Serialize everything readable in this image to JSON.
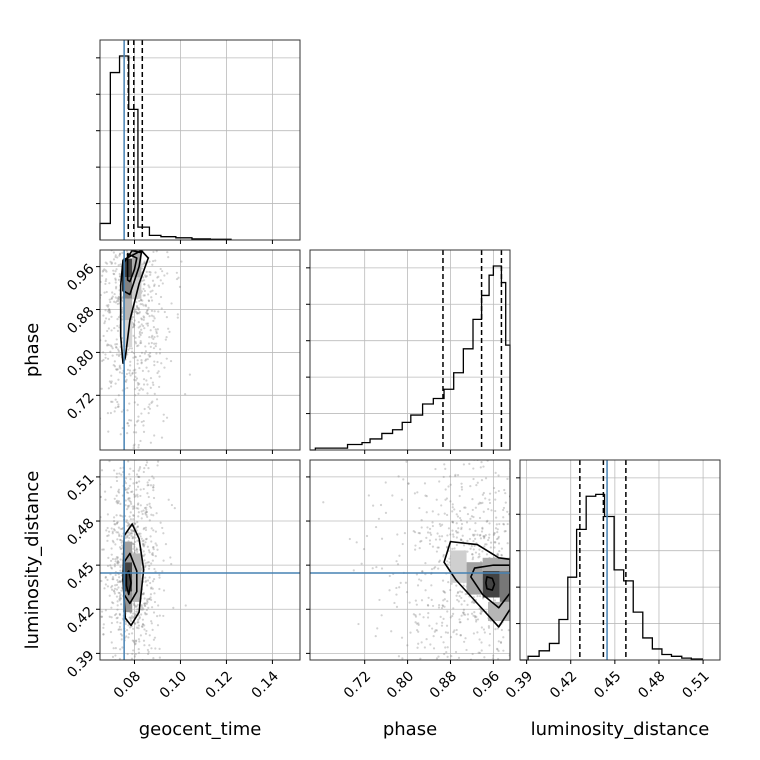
{
  "chart_data": {
    "type": "corner",
    "parameters": [
      "geocent_time",
      "phase",
      "luminosity_distance"
    ],
    "truths": {
      "geocent_time": 0.0755,
      "luminosity_distance": 0.4447
    },
    "colors": {
      "truth": "#4682b4",
      "contour": "#000000",
      "grid": "#bbbbbb",
      "scatter": "#7f7f7f"
    },
    "grid": true,
    "axes": {
      "geocent_time": {
        "range": [
          0.065,
          0.152
        ],
        "ticks": [
          0.08,
          0.1,
          0.12,
          0.14
        ],
        "tick_labels": [
          "0.08",
          "0.10",
          "0.12",
          "0.14"
        ]
      },
      "phase": {
        "range": [
          0.618,
          0.991
        ],
        "ticks": [
          0.72,
          0.8,
          0.88,
          0.96
        ],
        "tick_labels": [
          "0.72",
          "0.80",
          "0.88",
          "0.96"
        ]
      },
      "luminosity_distance": {
        "range": [
          0.3855,
          0.5215
        ],
        "ticks": [
          0.39,
          0.42,
          0.45,
          0.48,
          0.51
        ],
        "tick_labels": [
          "0.39",
          "0.42",
          "0.45",
          "0.48",
          "0.51"
        ]
      }
    },
    "histograms": [
      {
        "parameter": "geocent_time",
        "bin_edges": [
          0.065,
          0.0695,
          0.0735,
          0.0775,
          0.0815,
          0.0865,
          0.0915,
          0.098,
          0.105,
          0.113,
          0.122
        ],
        "counts": [
          0.09,
          0.91,
          1.0,
          0.71,
          0.07,
          0.025,
          0.018,
          0.012,
          0.006,
          0.004
        ],
        "quantiles": [
          0.0773,
          0.0797,
          0.0834
        ]
      },
      {
        "parameter": "phase",
        "bin_edges": [
          0.618,
          0.628,
          0.688,
          0.715,
          0.73,
          0.752,
          0.772,
          0.79,
          0.806,
          0.828,
          0.848,
          0.868,
          0.886,
          0.904,
          0.922,
          0.938,
          0.952,
          0.96,
          0.975,
          0.983,
          0.991
        ],
        "counts": [
          0,
          0.01,
          0.03,
          0.04,
          0.06,
          0.09,
          0.11,
          0.15,
          0.19,
          0.25,
          0.28,
          0.33,
          0.42,
          0.55,
          0.71,
          0.84,
          0.95,
          1.0,
          0.91,
          0.57
        ],
        "quantiles": [
          0.866,
          0.938,
          0.975
        ]
      },
      {
        "parameter": "luminosity_distance",
        "bin_edges": [
          0.3855,
          0.391,
          0.3985,
          0.4055,
          0.412,
          0.418,
          0.424,
          0.4305,
          0.437,
          0.443,
          0.4495,
          0.456,
          0.4625,
          0.469,
          0.4755,
          0.482,
          0.4885,
          0.4955,
          0.502,
          0.5095
        ],
        "counts": [
          0,
          0.02,
          0.05,
          0.09,
          0.22,
          0.45,
          0.71,
          0.89,
          0.9,
          0.78,
          0.49,
          0.43,
          0.26,
          0.12,
          0.06,
          0.03,
          0.02,
          0.01,
          0.005
        ],
        "quantiles": [
          0.4262,
          0.4422,
          0.4575
        ]
      }
    ],
    "panels_2d": [
      {
        "x": "geocent_time",
        "y": "phase",
        "contours": [
          [
            [
              0.077,
              0.984
            ],
            [
              0.081,
              0.976
            ],
            [
              0.08,
              0.955
            ],
            [
              0.078,
              0.932
            ],
            [
              0.077,
              0.935
            ],
            [
              0.077,
              0.972
            ],
            [
              0.077,
              0.984
            ]
          ],
          [
            [
              0.079,
              0.99
            ],
            [
              0.083,
              0.986
            ],
            [
              0.082,
              0.96
            ],
            [
              0.078,
              0.908
            ],
            [
              0.075,
              0.915
            ],
            [
              0.075,
              0.965
            ],
            [
              0.079,
              0.99
            ]
          ],
          [
            [
              0.083,
              0.99
            ],
            [
              0.086,
              0.976
            ],
            [
              0.082,
              0.928
            ],
            [
              0.078,
              0.86
            ],
            [
              0.076,
              0.79
            ],
            [
              0.075,
              0.78
            ],
            [
              0.074,
              0.83
            ],
            [
              0.074,
              0.925
            ],
            [
              0.075,
              0.972
            ],
            [
              0.083,
              0.99
            ]
          ]
        ],
        "density_cells": [
          {
            "x": [
              0.075,
              0.079
            ],
            "y": [
              0.94,
              0.975
            ],
            "level": 0.85
          },
          {
            "x": [
              0.075,
              0.079
            ],
            "y": [
              0.9,
              0.94
            ],
            "level": 0.55
          },
          {
            "x": [
              0.075,
              0.079
            ],
            "y": [
              0.86,
              0.9
            ],
            "level": 0.3
          },
          {
            "x": [
              0.075,
              0.079
            ],
            "y": [
              0.81,
              0.86
            ],
            "level": 0.15
          },
          {
            "x": [
              0.079,
              0.083
            ],
            "y": [
              0.94,
              0.99
            ],
            "level": 0.35
          },
          {
            "x": [
              0.079,
              0.083
            ],
            "y": [
              0.9,
              0.94
            ],
            "level": 0.2
          }
        ]
      },
      {
        "x": "geocent_time",
        "y": "luminosity_distance",
        "contours": [
          [
            [
              0.0775,
              0.446
            ],
            [
              0.0785,
              0.438
            ],
            [
              0.0775,
              0.43
            ],
            [
              0.0765,
              0.436
            ],
            [
              0.0765,
              0.444
            ],
            [
              0.0775,
              0.446
            ]
          ],
          [
            [
              0.078,
              0.458
            ],
            [
              0.081,
              0.446
            ],
            [
              0.081,
              0.432
            ],
            [
              0.078,
              0.424
            ],
            [
              0.0755,
              0.43
            ],
            [
              0.0755,
              0.452
            ],
            [
              0.078,
              0.458
            ]
          ],
          [
            [
              0.079,
              0.478
            ],
            [
              0.082,
              0.468
            ],
            [
              0.084,
              0.447
            ],
            [
              0.082,
              0.418
            ],
            [
              0.0785,
              0.409
            ],
            [
              0.076,
              0.414
            ],
            [
              0.075,
              0.44
            ],
            [
              0.0755,
              0.47
            ],
            [
              0.079,
              0.478
            ]
          ]
        ],
        "density_cells": [
          {
            "x": [
              0.075,
              0.079
            ],
            "y": [
              0.432,
              0.452
            ],
            "level": 0.85
          },
          {
            "x": [
              0.075,
              0.079
            ],
            "y": [
              0.452,
              0.466
            ],
            "level": 0.4
          },
          {
            "x": [
              0.075,
              0.079
            ],
            "y": [
              0.418,
              0.432
            ],
            "level": 0.45
          },
          {
            "x": [
              0.079,
              0.083
            ],
            "y": [
              0.425,
              0.458
            ],
            "level": 0.3
          }
        ]
      },
      {
        "x": "phase",
        "y": "luminosity_distance",
        "contours": [
          [
            [
              0.948,
              0.442
            ],
            [
              0.958,
              0.441
            ],
            [
              0.962,
              0.437
            ],
            [
              0.958,
              0.433
            ],
            [
              0.948,
              0.434
            ],
            [
              0.946,
              0.438
            ],
            [
              0.948,
              0.442
            ]
          ],
          [
            [
              0.925,
              0.448
            ],
            [
              0.96,
              0.45
            ],
            [
              0.991,
              0.45
            ],
            [
              0.991,
              0.431
            ],
            [
              0.97,
              0.421
            ],
            [
              0.94,
              0.43
            ],
            [
              0.918,
              0.442
            ],
            [
              0.925,
              0.448
            ]
          ],
          [
            [
              0.88,
              0.466
            ],
            [
              0.93,
              0.464
            ],
            [
              0.97,
              0.455
            ],
            [
              0.991,
              0.454
            ],
            [
              0.991,
              0.42
            ],
            [
              0.97,
              0.408
            ],
            [
              0.94,
              0.42
            ],
            [
              0.89,
              0.44
            ],
            [
              0.868,
              0.452
            ],
            [
              0.88,
              0.466
            ]
          ]
        ],
        "density_cells": [
          {
            "x": [
              0.94,
              0.972
            ],
            "y": [
              0.428,
              0.446
            ],
            "level": 0.85
          },
          {
            "x": [
              0.972,
              0.991
            ],
            "y": [
              0.425,
              0.446
            ],
            "level": 0.6
          },
          {
            "x": [
              0.91,
              0.94
            ],
            "y": [
              0.43,
              0.452
            ],
            "level": 0.4
          },
          {
            "x": [
              0.88,
              0.91
            ],
            "y": [
              0.438,
              0.46
            ],
            "level": 0.18
          },
          {
            "x": [
              0.94,
              0.991
            ],
            "y": [
              0.446,
              0.455
            ],
            "level": 0.35
          },
          {
            "x": [
              0.95,
              0.991
            ],
            "y": [
              0.412,
              0.425
            ],
            "level": 0.3
          }
        ]
      }
    ]
  }
}
